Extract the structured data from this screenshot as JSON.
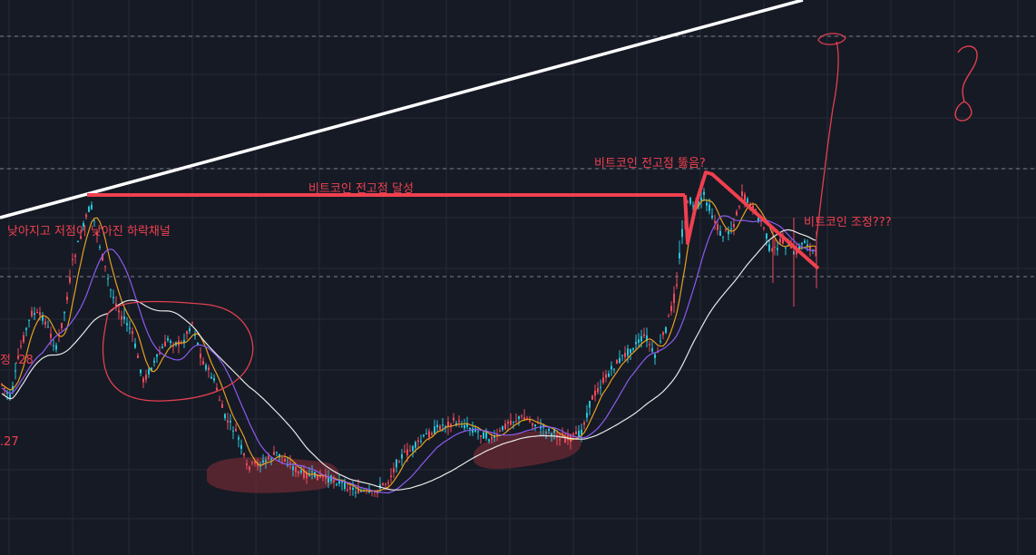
{
  "chart_data": {
    "type": "candlestick",
    "title": "",
    "xlabel": "",
    "ylabel": "",
    "grid": true,
    "colors": {
      "background": "#161a25",
      "grid": "#252a37",
      "candle_up": "#26c6da",
      "candle_down": "#ef4b5b",
      "ma_short": "#e6a021",
      "ma_mid": "#8a5cf0",
      "ma_long": "#e8e8e8",
      "annotation": "#f0404f",
      "trendline": "#ffffff",
      "drawing_circle": "#e0404f",
      "highlight_zone": "#6b2a33"
    },
    "annotations": {
      "downtrend_channel": "낮아지고 저점이 낮아진 하락채널",
      "prev_high_reached": "비트코인 전고점 달성",
      "prev_high_break": "비트코인 전고점 뚫음?",
      "correction": "비트코인 조정???",
      "left_label_1": "정 .28",
      "left_label_2": ".27",
      "question_mark": "?"
    }
  }
}
